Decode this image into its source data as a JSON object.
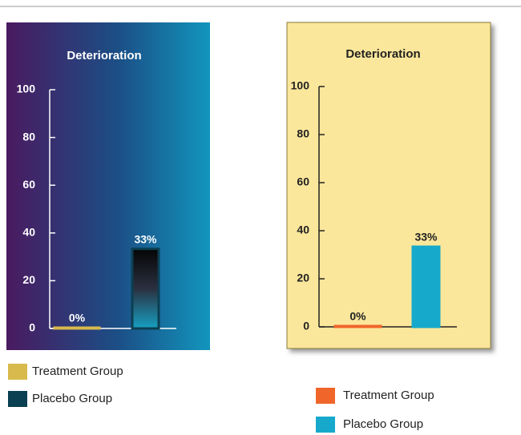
{
  "chart_data": [
    {
      "type": "bar",
      "title": "Deterioration",
      "categories": [
        "Treatment Group",
        "Placebo Group"
      ],
      "values": [
        0,
        33
      ],
      "value_labels": [
        "0%",
        "33%"
      ],
      "colors": [
        "#d8b94c",
        "#0b3f52"
      ],
      "ylim": [
        0,
        100
      ],
      "yticks": [
        0,
        20,
        40,
        60,
        80,
        100
      ]
    },
    {
      "type": "bar",
      "title": "Deterioration",
      "categories": [
        "Treatment Group",
        "Placebo Group"
      ],
      "values": [
        0,
        33
      ],
      "value_labels": [
        "0%",
        "33%"
      ],
      "colors": [
        "#f0652a",
        "#16a9cc"
      ],
      "ylim": [
        0,
        100
      ],
      "yticks": [
        0,
        20,
        40,
        60,
        80,
        100
      ]
    }
  ]
}
